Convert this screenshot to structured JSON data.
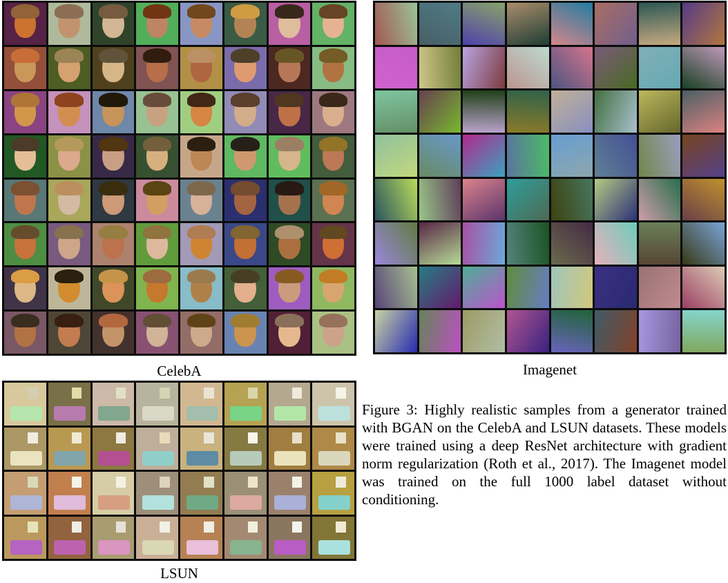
{
  "figure": {
    "panels": {
      "celeba": {
        "label": "CelebA",
        "rows": 8,
        "cols": 8
      },
      "imagenet": {
        "label": "Imagenet",
        "rows": 8,
        "cols": 8
      },
      "lsun": {
        "label": "LSUN",
        "rows": 4,
        "cols": 8
      }
    },
    "caption": "Figure 3: Highly realistic samples from a generator trained with BGAN on the CelebA and LSUN datasets. These models were trained using a deep ResNet architecture with gradient norm regularization (Roth et al., 2017). The Imagenet model was trained on the full 1000 label dataset without conditioning."
  }
}
